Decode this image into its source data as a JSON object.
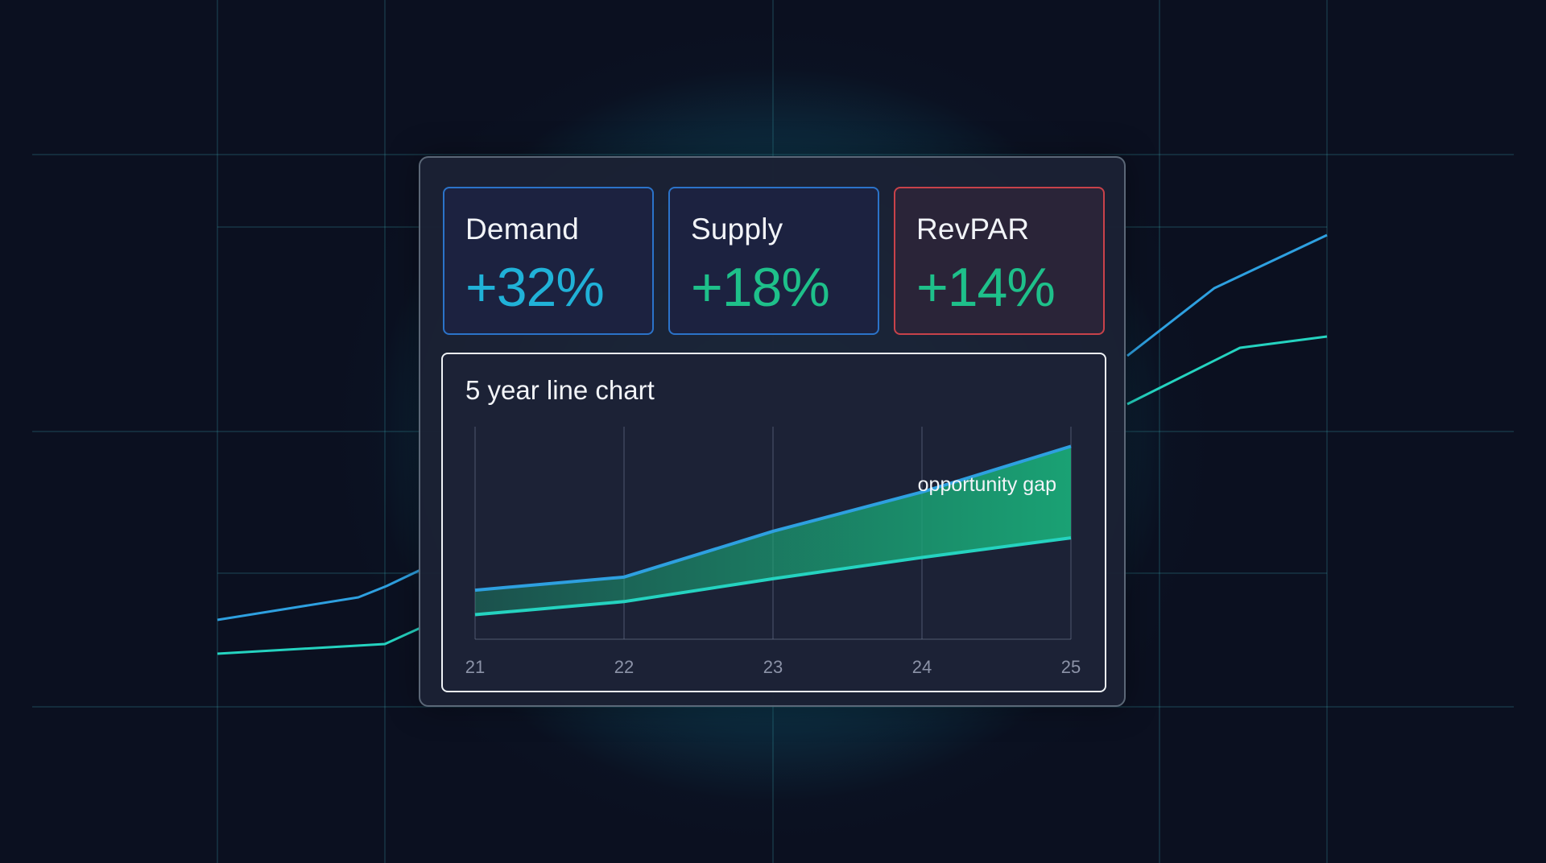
{
  "colors": {
    "background": "#0b1020",
    "glow": "#20c4d6",
    "demand_value": "#20b2d8",
    "supply_value": "#1ec08a",
    "revpar_value": "#1ec08a",
    "demand_line": "#2ea0e0",
    "supply_line": "#25d3c0",
    "gap_fill": "#1aa877",
    "card_border_blue": "#2b73c9",
    "card_border_red": "#c8424a"
  },
  "metrics": [
    {
      "label": "Demand",
      "value": "+32%"
    },
    {
      "label": "Supply",
      "value": "+18%"
    },
    {
      "label": "RevPAR",
      "value": "+14%"
    }
  ],
  "chart_data": {
    "type": "area",
    "title": "5 year line chart",
    "categories": [
      "21",
      "22",
      "23",
      "24",
      "25"
    ],
    "series": [
      {
        "values": [
          30,
          38,
          66,
          90,
          118
        ]
      },
      {
        "values": [
          15,
          23,
          37,
          50,
          62
        ]
      }
    ],
    "ylim": [
      0,
      130
    ],
    "annotation": "opportunity gap",
    "grid": true,
    "legend": "none"
  }
}
